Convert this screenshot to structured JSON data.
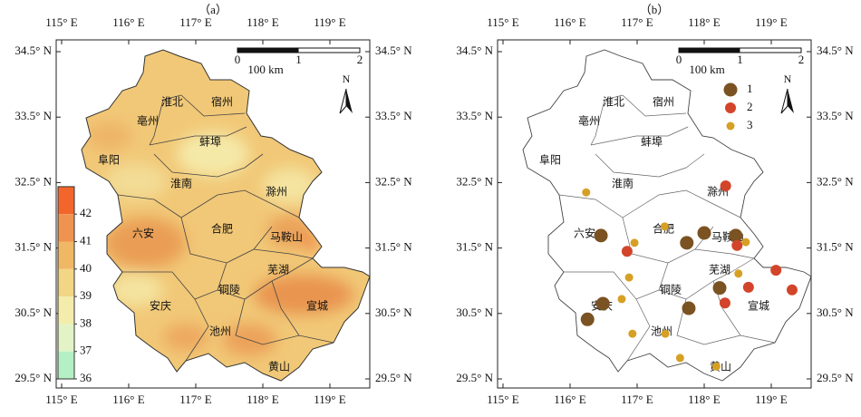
{
  "axes": {
    "xticks": [
      {
        "value": 115,
        "label": "115° E"
      },
      {
        "value": 116,
        "label": "116° E"
      },
      {
        "value": 117,
        "label": "117° E"
      },
      {
        "value": 118,
        "label": "118° E"
      },
      {
        "value": 119,
        "label": "119° E"
      }
    ],
    "yticks": [
      {
        "value": 34.5,
        "label": "34.5° N"
      },
      {
        "value": 33.5,
        "label": "33.5° N"
      },
      {
        "value": 32.5,
        "label": "32.5° N"
      },
      {
        "value": 31.5,
        "label": "31.5° N"
      },
      {
        "value": 30.5,
        "label": "30.5° N"
      },
      {
        "value": 29.5,
        "label": "29.5° N"
      }
    ]
  },
  "cities": [
    "淮北",
    "宿州",
    "亳州",
    "蚌埠",
    "阜阳",
    "淮南",
    "滁州",
    "六安",
    "合肥",
    "马鞍山",
    "芜湖",
    "铜陵",
    "安庆",
    "宣城",
    "池州",
    "黄山"
  ],
  "scale_bar": {
    "labels": [
      "0",
      "1",
      "2"
    ],
    "unit": "100 km"
  },
  "north": "N",
  "panels": [
    {
      "title": "（a）",
      "colorbar": {
        "ticks": [
          42,
          41,
          40,
          39,
          38,
          37,
          36
        ],
        "colors": [
          "#f2662c",
          "#ef9350",
          "#f0b765",
          "#f2d585",
          "#f4ecaa",
          "#e4f3c6",
          "#b4f0c4"
        ]
      }
    },
    {
      "title": "（b）",
      "legend": [
        {
          "name": "1",
          "color": "#7b5222",
          "points": [
            [
              116.46,
              31.69
            ],
            [
              117.74,
              31.58
            ],
            [
              118.0,
              31.73
            ],
            [
              118.47,
              31.69
            ],
            [
              118.23,
              30.89
            ],
            [
              116.49,
              30.65
            ],
            [
              116.26,
              30.41
            ],
            [
              117.77,
              30.58
            ]
          ]
        },
        {
          "name": "2",
          "color": "#d2452a",
          "points": [
            [
              118.32,
              32.45
            ],
            [
              116.85,
              31.45
            ],
            [
              118.49,
              31.54
            ],
            [
              118.66,
              30.9
            ],
            [
              119.07,
              31.16
            ],
            [
              119.31,
              30.86
            ],
            [
              118.31,
              30.66
            ]
          ]
        },
        {
          "name": "3",
          "color": "#d6a024",
          "points": [
            [
              116.24,
              32.35
            ],
            [
              117.41,
              31.83
            ],
            [
              116.96,
              31.58
            ],
            [
              118.62,
              31.59
            ],
            [
              118.51,
              31.11
            ],
            [
              116.88,
              31.05
            ],
            [
              116.77,
              30.72
            ],
            [
              116.93,
              30.19
            ],
            [
              117.42,
              30.19
            ],
            [
              117.64,
              29.82
            ],
            [
              118.18,
              29.69
            ]
          ]
        }
      ]
    }
  ]
}
